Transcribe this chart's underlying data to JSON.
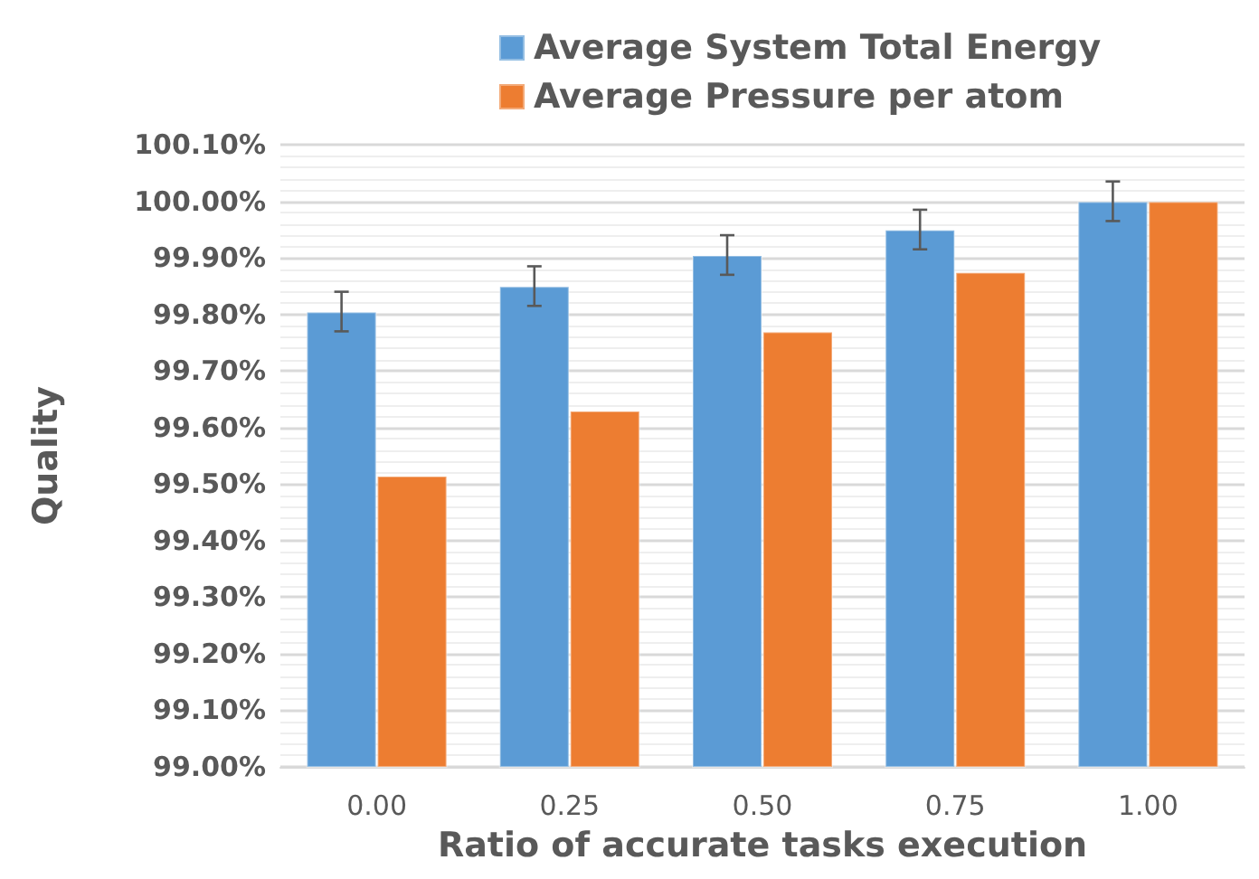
{
  "chart_data": {
    "type": "bar",
    "xlabel": "Ratio of accurate tasks execution",
    "ylabel": "Quality",
    "categories": [
      "0.00",
      "0.25",
      "0.50",
      "0.75",
      "1.00"
    ],
    "series": [
      {
        "name": "Average System Total Energy",
        "color": "#5b9bd5",
        "values": [
          99.805,
          99.85,
          99.905,
          99.95,
          100.0
        ],
        "errors": [
          0.035,
          0.035,
          0.035,
          0.035,
          0.035
        ]
      },
      {
        "name": "Average Pressure per atom",
        "color": "#ed7d31",
        "values": [
          99.515,
          99.63,
          99.77,
          99.875,
          100.0
        ]
      }
    ],
    "ylim": [
      99.0,
      100.1
    ],
    "yticks": [
      {
        "value": 99.0,
        "label": "99.00%"
      },
      {
        "value": 99.1,
        "label": "99.10%"
      },
      {
        "value": 99.2,
        "label": "99.20%"
      },
      {
        "value": 99.3,
        "label": "99.30%"
      },
      {
        "value": 99.4,
        "label": "99.40%"
      },
      {
        "value": 99.5,
        "label": "99.50%"
      },
      {
        "value": 99.6,
        "label": "99.60%"
      },
      {
        "value": 99.7,
        "label": "99.70%"
      },
      {
        "value": 99.8,
        "label": "99.80%"
      },
      {
        "value": 99.9,
        "label": "99.90%"
      },
      {
        "value": 100.0,
        "label": "100.00%"
      },
      {
        "value": 100.1,
        "label": "100.10%"
      }
    ],
    "grid": "y",
    "legend": "top"
  }
}
